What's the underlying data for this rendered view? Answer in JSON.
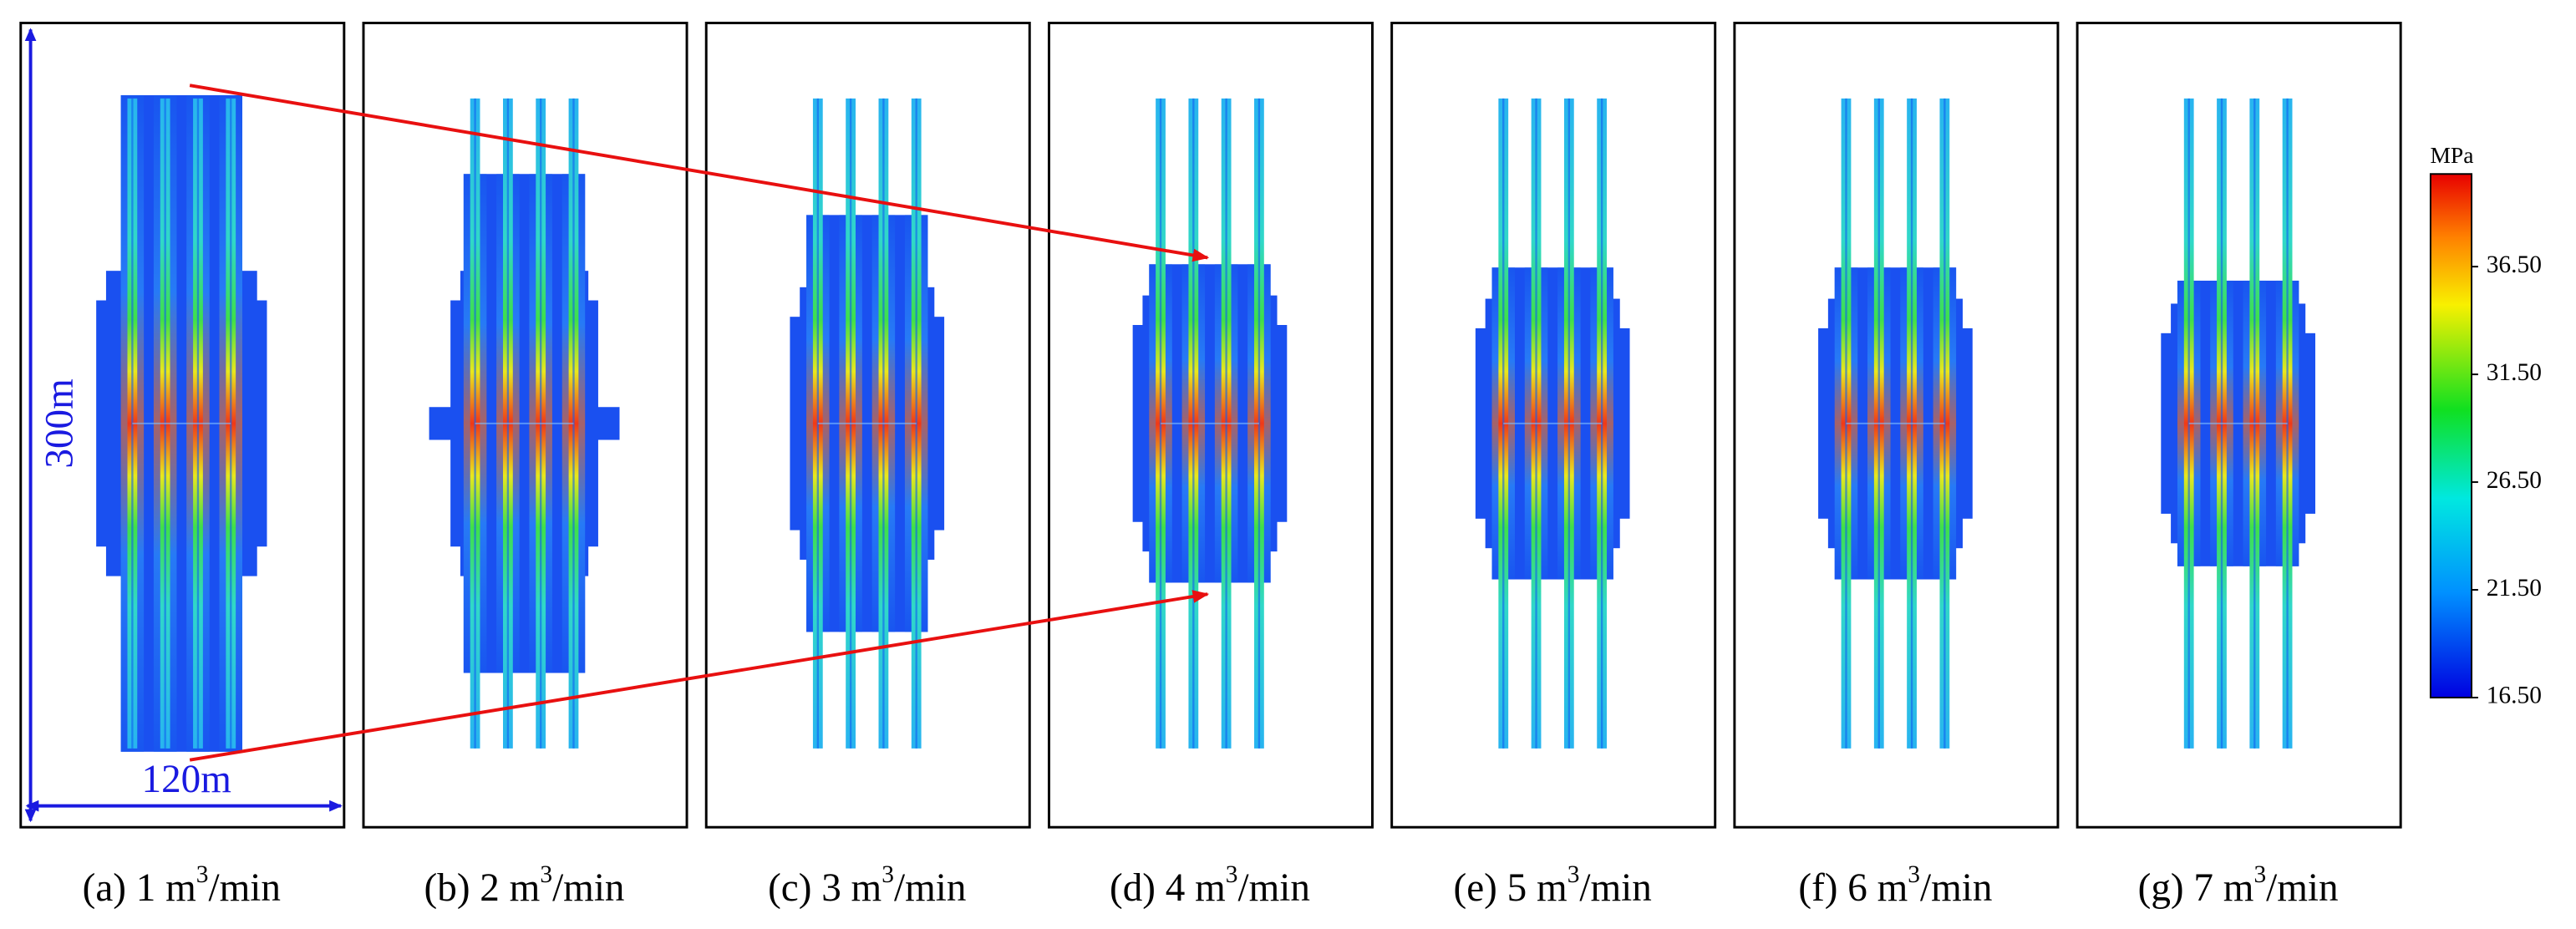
{
  "panels": [
    {
      "label": "(a) 1 m",
      "sup": "3",
      "unit": "/min"
    },
    {
      "label": "(b) 2 m",
      "sup": "3",
      "unit": "/min"
    },
    {
      "label": "(c) 3 m",
      "sup": "3",
      "unit": "/min"
    },
    {
      "label": "(d) 4 m",
      "sup": "3",
      "unit": "/min"
    },
    {
      "label": "(e) 5 m",
      "sup": "3",
      "unit": "/min"
    },
    {
      "label": "(f) 6 m",
      "sup": "3",
      "unit": "/min"
    },
    {
      "label": "(g) 7 m",
      "sup": "3",
      "unit": "/min"
    }
  ],
  "annotations": {
    "height": "300m",
    "width": "120m"
  },
  "colorbar": {
    "unit": "MPa",
    "range": [
      16.5,
      40.8
    ],
    "ticks": [
      {
        "value": 16.5,
        "label": "16.50"
      },
      {
        "value": 21.5,
        "label": "21.50"
      },
      {
        "value": 26.5,
        "label": "26.50"
      },
      {
        "value": 31.5,
        "label": "31.50"
      },
      {
        "value": 36.5,
        "label": "36.50"
      }
    ]
  }
}
